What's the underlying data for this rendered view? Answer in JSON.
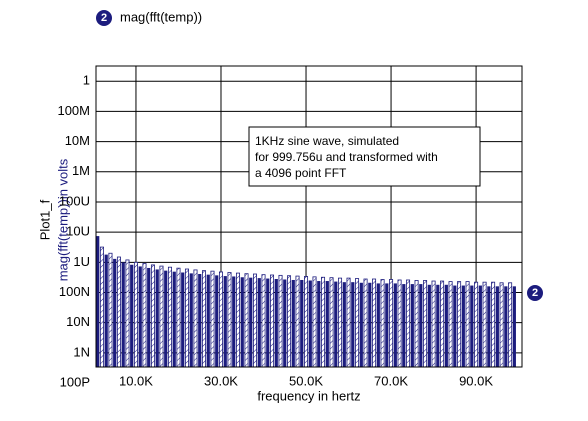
{
  "chart_data": {
    "type": "bar",
    "series": [
      {
        "name": "mag(fft(temp))",
        "label": "2",
        "color": "#1c1c7e",
        "x": [
          1000,
          2000,
          3000,
          4000,
          5000,
          6000,
          7000,
          8000,
          9000,
          10000,
          11000,
          12000,
          13000,
          14000,
          15000,
          16000,
          17000,
          18000,
          19000,
          20000,
          21000,
          22000,
          23000,
          24000,
          25000,
          26000,
          27000,
          28000,
          29000,
          30000,
          31000,
          32000,
          33000,
          34000,
          35000,
          36000,
          37000,
          38000,
          39000,
          40000,
          41000,
          42000,
          43000,
          44000,
          45000,
          46000,
          47000,
          48000,
          49000,
          50000,
          51000,
          52000,
          53000,
          54000,
          55000,
          56000,
          57000,
          58000,
          59000,
          60000,
          61000,
          62000,
          63000,
          64000,
          65000,
          66000,
          67000,
          68000,
          69000,
          70000,
          71000,
          72000,
          73000,
          74000,
          75000,
          76000,
          77000,
          78000,
          79000,
          80000,
          81000,
          82000,
          83000,
          84000,
          85000,
          86000,
          87000,
          88000,
          89000,
          90000,
          91000,
          92000,
          93000,
          94000,
          95000,
          96000,
          97000,
          98000,
          99000
        ],
        "values": [
          7.4e-06,
          3.2e-06,
          1.8e-06,
          2e-06,
          1.3e-06,
          1.5e-06,
          1e-06,
          1.2e-06,
          8.3e-07,
          1e-06,
          7.3e-07,
          9.1e-07,
          6.5e-07,
          8.2e-07,
          5.8e-07,
          7.5e-07,
          5.3e-07,
          6.9e-07,
          4.9e-07,
          6.4e-07,
          4.6e-07,
          6e-07,
          4.3e-07,
          5.6e-07,
          4.1e-07,
          5.3e-07,
          3.9e-07,
          5.1e-07,
          3.7e-07,
          4.8e-07,
          3.5e-07,
          4.6e-07,
          3.4e-07,
          4.4e-07,
          3.2e-07,
          4.2e-07,
          3.1e-07,
          4.1e-07,
          3e-07,
          3.9e-07,
          2.9e-07,
          3.8e-07,
          2.8e-07,
          3.7e-07,
          2.7e-07,
          3.6e-07,
          2.6e-07,
          3.5e-07,
          2.6e-07,
          3.4e-07,
          2.5e-07,
          3.3e-07,
          2.4e-07,
          3.2e-07,
          2.4e-07,
          3.1e-07,
          2.3e-07,
          3e-07,
          2.2e-07,
          3e-07,
          2.2e-07,
          2.9e-07,
          2.1e-07,
          2.8e-07,
          2.1e-07,
          2.8e-07,
          2e-07,
          2.7e-07,
          2e-07,
          2.7e-07,
          2e-07,
          2.6e-07,
          1.9e-07,
          2.6e-07,
          1.9e-07,
          2.5e-07,
          1.9e-07,
          2.5e-07,
          1.8e-07,
          2.4e-07,
          1.8e-07,
          2.4e-07,
          1.8e-07,
          2.3e-07,
          1.7e-07,
          2.3e-07,
          1.7e-07,
          2.3e-07,
          1.7e-07,
          2.2e-07,
          1.7e-07,
          2.2e-07,
          1.6e-07,
          2.2e-07,
          1.6e-07,
          2.1e-07,
          1.6e-07,
          2.1e-07,
          1.6e-07
        ]
      }
    ],
    "ylabel_title": "Plot1_f",
    "ylabel": "mag(fft(temp))in volts",
    "xlabel": "frequency in hertz",
    "annotation": [
      "1KHz sine wave, simulated",
      "for 999.756u and transformed with",
      "a 4096 point FFT"
    ],
    "log_y": true,
    "grid": true,
    "xlim": [
      600,
      100800
    ],
    "xticks": [
      {
        "value": 10000,
        "label": "10.0K"
      },
      {
        "value": 30000,
        "label": "30.0K"
      },
      {
        "value": 50000,
        "label": "50.0K"
      },
      {
        "value": 70000,
        "label": "70.0K"
      },
      {
        "value": 90000,
        "label": "90.0K"
      }
    ],
    "ylim": [
      3.4e-10,
      3.2
    ],
    "yticks": [
      1,
      {
        "value": 0.1,
        "label": "100M"
      },
      {
        "value": 0.01,
        "label": "10M"
      },
      {
        "value": 0.001,
        "label": "1M"
      },
      {
        "value": 0.0001,
        "label": "100U"
      },
      {
        "value": 1e-05,
        "label": "10U"
      },
      {
        "value": 1e-06,
        "label": "1U"
      },
      {
        "value": 1e-07,
        "label": "100N"
      },
      {
        "value": 1e-08,
        "label": "10N"
      },
      {
        "value": 1e-09,
        "label": "1N"
      },
      {
        "value": 1e-10,
        "label": "100P"
      }
    ]
  }
}
